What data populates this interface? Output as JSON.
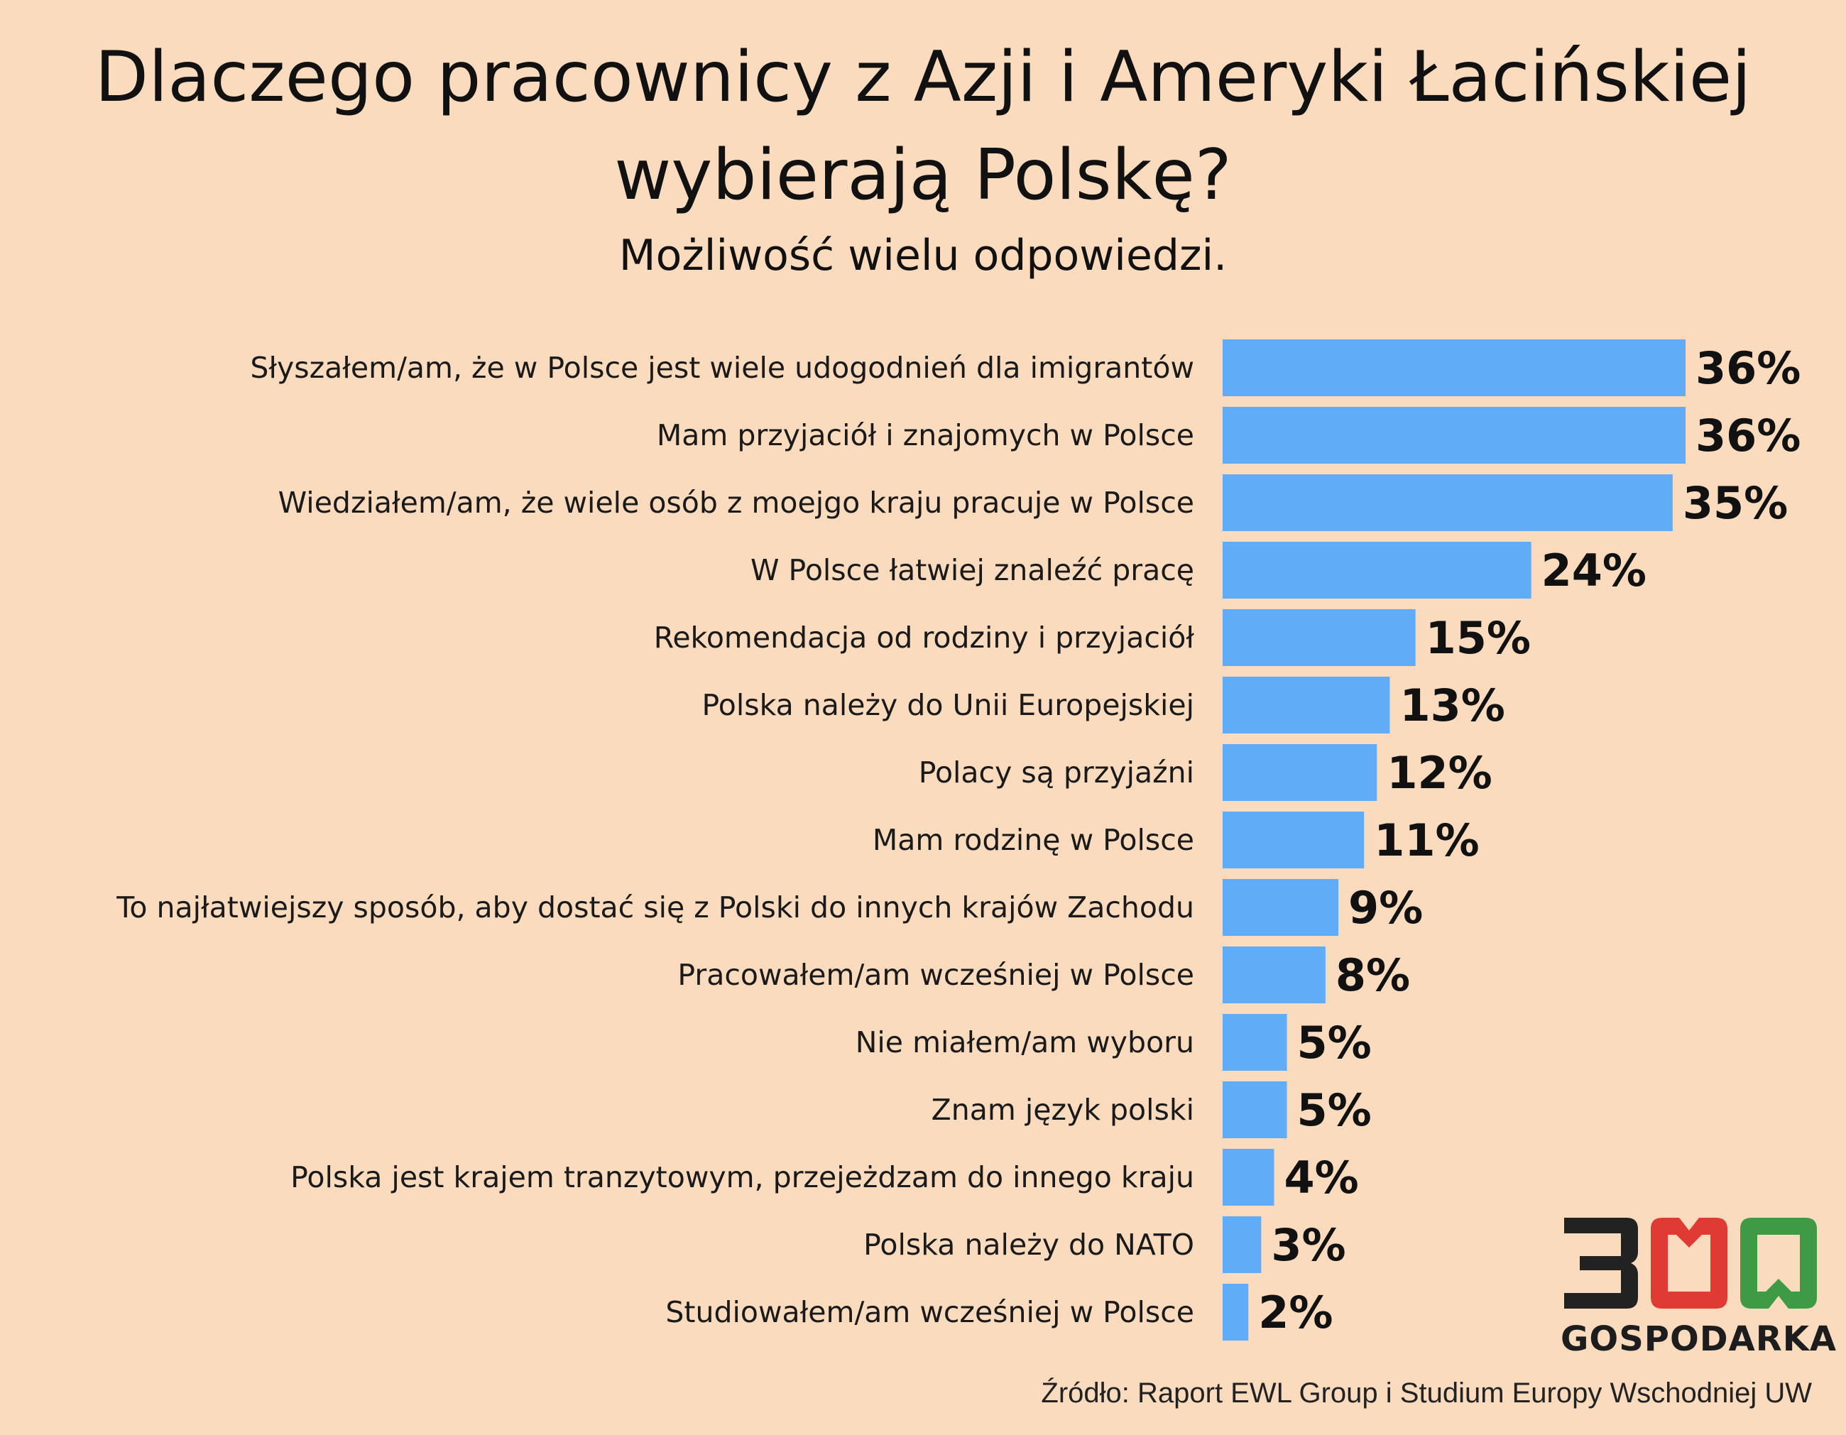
{
  "title": "Dlaczego pracownicy z Azji i Ameryki Łacińskiej wybierają Polskę?",
  "subtitle": "Możliwość wielu odpowiedzi.",
  "source": "Źródło: Raport EWL Group i Studium Europy Wschodniej UW",
  "logo": {
    "number": "300",
    "text": "GOSPODARKA",
    "colors": {
      "dark": "#222222",
      "red": "#e03b33",
      "green": "#3e9a45"
    }
  },
  "colors": {
    "bar": "#60acf6",
    "background": "#fadbbe",
    "text": "#111111"
  },
  "chart_data": {
    "type": "bar",
    "orientation": "horizontal",
    "title": "Dlaczego pracownicy z Azji i Ameryki Łacińskiej wybierają Polskę?",
    "subtitle": "Możliwość wielu odpowiedzi.",
    "unit": "%",
    "categories": [
      "Słyszałem/am, że w Polsce jest wiele udogodnień dla imigrantów",
      "Mam przyjaciół i znajomych w Polsce",
      "Wiedziałem/am, że wiele osób z moejgo kraju pracuje w Polsce",
      "W Polsce łatwiej znaleźć pracę",
      "Rekomendacja od rodziny i przyjaciół",
      "Polska należy do Unii Europejskiej",
      "Polacy są przyjaźni",
      "Mam rodzinę w Polsce",
      "To najłatwiejszy sposób, aby dostać się z Polski do innych krajów Zachodu",
      "Pracowałem/am wcześniej w Polsce",
      "Nie miałem/am wyboru",
      "Znam język polski",
      "Polska jest krajem tranzytowym, przejeżdzam do innego kraju",
      "Polska należy do NATO",
      "Studiowałem/am wcześniej w Polsce"
    ],
    "values": [
      36,
      36,
      35,
      24,
      15,
      13,
      12,
      11,
      9,
      8,
      5,
      5,
      4,
      3,
      2
    ],
    "value_labels": [
      "36%",
      "36%",
      "35%",
      "24%",
      "15%",
      "13%",
      "12%",
      "11%",
      "9%",
      "8%",
      "5%",
      "5%",
      "4%",
      "3%",
      "2%"
    ],
    "xlim": [
      0,
      36
    ],
    "grid": false,
    "legend": "none"
  }
}
